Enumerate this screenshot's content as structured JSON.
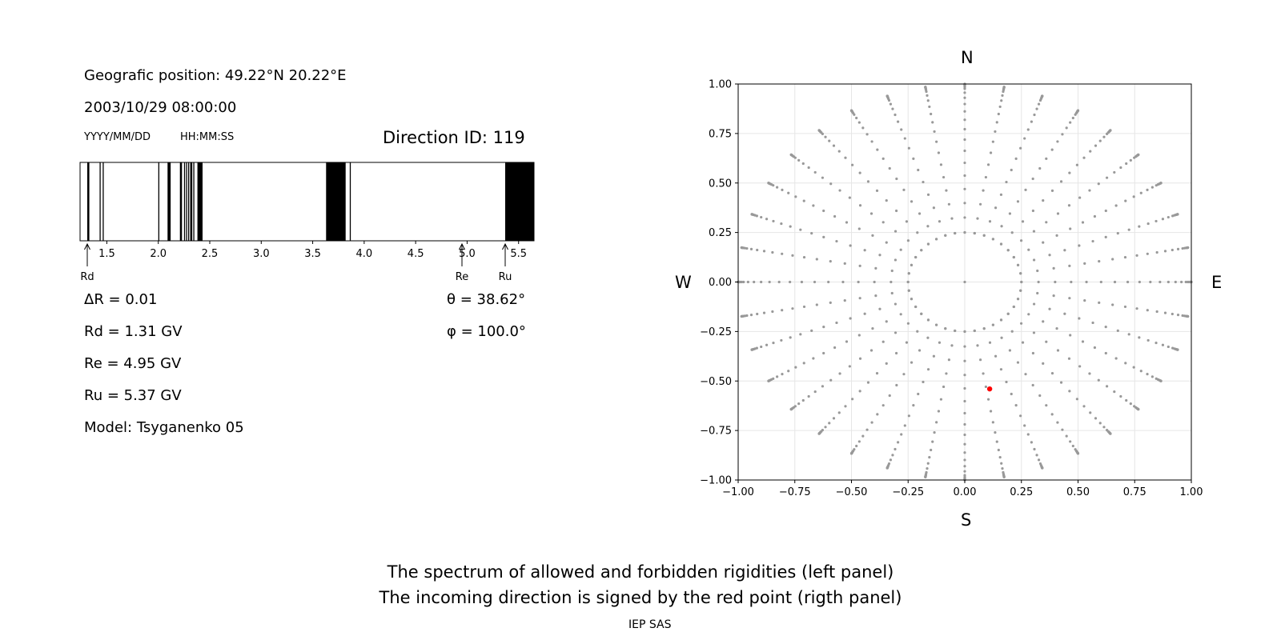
{
  "header": {
    "position": "Geografic position: 49.22°N 20.22°E",
    "datetime": "2003/10/29 08:00:00",
    "date_format": "YYYY/MM/DD",
    "time_format": "HH:MM:SS",
    "direction_id": "Direction ID: 119"
  },
  "params": {
    "delta_r": "ΔR = 0.01",
    "rd": "Rd = 1.31 GV",
    "re": "Re = 4.95 GV",
    "ru": "Ru = 5.37 GV",
    "model": "Model: Tsyganenko 05",
    "theta": "θ = 38.62°",
    "phi": "φ = 100.0°"
  },
  "compass": {
    "n": "N",
    "s": "S",
    "w": "W",
    "e": "E"
  },
  "caption": {
    "line1": "The spectrum of allowed and forbidden rigidities (left panel)",
    "line2": "The incoming direction is signed by the red point (rigth panel)",
    "credit": "IEP SAS"
  },
  "chart_data": [
    {
      "type": "spectrum",
      "xlim": [
        1.24,
        5.65
      ],
      "xticks": [
        1.5,
        2.0,
        2.5,
        3.0,
        3.5,
        4.0,
        4.5,
        5.0,
        5.5
      ],
      "xtick_labels": [
        "1.5",
        "2.0",
        "2.5",
        "3.0",
        "3.5",
        "4.0",
        "4.5",
        "5.0",
        "5.5"
      ],
      "forbidden_bands": [
        [
          1.31,
          1.33
        ],
        [
          1.43,
          1.44
        ],
        [
          1.46,
          1.47
        ],
        [
          2.0,
          2.01
        ],
        [
          2.09,
          2.12
        ],
        [
          2.21,
          2.23
        ],
        [
          2.25,
          2.26
        ],
        [
          2.27,
          2.28
        ],
        [
          2.29,
          2.3
        ],
        [
          2.31,
          2.33
        ],
        [
          2.34,
          2.35
        ],
        [
          2.38,
          2.43
        ],
        [
          3.63,
          3.82
        ],
        [
          3.86,
          3.87
        ],
        [
          5.37,
          5.65
        ]
      ],
      "markers": [
        {
          "label": "Rd",
          "value": 1.31
        },
        {
          "label": "Re",
          "value": 4.95
        },
        {
          "label": "Ru",
          "value": 5.37
        }
      ]
    },
    {
      "type": "scatter",
      "xlim": [
        -1.0,
        1.0
      ],
      "ylim": [
        -1.0,
        1.0
      ],
      "grid": true,
      "ticks": [
        -1.0,
        -0.75,
        -0.5,
        -0.25,
        0.0,
        0.25,
        0.5,
        0.75,
        1.0
      ],
      "tick_labels": [
        "−1.00",
        "−0.75",
        "−0.50",
        "−0.25",
        "0.00",
        "0.25",
        "0.50",
        "0.75",
        "1.00"
      ],
      "ring_radius": 0.25,
      "ring_points": 36,
      "spoke_angles_deg": [
        0,
        10,
        20,
        30,
        40,
        50,
        60,
        70,
        80,
        90,
        100,
        110,
        120,
        130,
        140,
        150,
        160,
        170,
        180,
        190,
        200,
        210,
        220,
        230,
        240,
        250,
        260,
        270,
        280,
        290,
        300,
        310,
        320,
        330,
        340,
        350
      ],
      "spoke_sample_theta_deg": [
        14.5,
        19,
        23.5,
        28,
        32.5,
        37,
        41.5,
        46,
        50.5,
        55,
        59.5,
        64,
        68.5,
        73,
        77.5,
        80,
        82,
        83.5,
        85,
        86,
        87,
        88,
        89,
        90
      ],
      "grey_color": "#999999",
      "selected_point": {
        "x": 0.11,
        "y": -0.54,
        "color": "#ff0000"
      }
    }
  ]
}
